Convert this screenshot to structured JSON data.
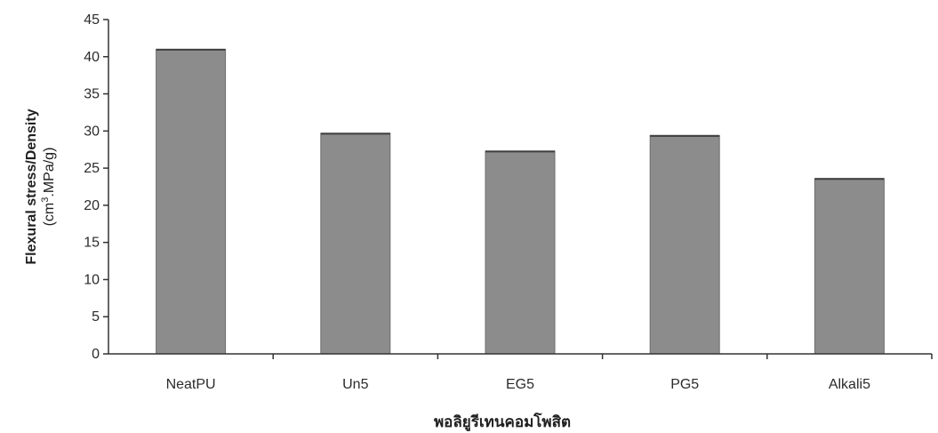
{
  "chart_data": {
    "type": "bar",
    "categories": [
      "NeatPU",
      "Un5",
      "EG5",
      "PG5",
      "Alkali5"
    ],
    "values": [
      41,
      29.7,
      27.3,
      29.4,
      23.6
    ],
    "ylabel_line1": "Flexural stress/Density",
    "ylabel_line2_prefix": "(cm",
    "ylabel_line2_sup": "3",
    "ylabel_line2_suffix": ".MPa/g)",
    "xlabel": "พอลิยูรีเทนคอมโพสิต",
    "ylim": [
      0,
      45
    ],
    "yticks": [
      0,
      5,
      10,
      15,
      20,
      25,
      30,
      35,
      40,
      45
    ],
    "grid": false,
    "bar_color": "#8c8c8c",
    "bar_border_color": "#6e6e6e",
    "axis_color": "#333333"
  }
}
